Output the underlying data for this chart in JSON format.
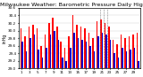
{
  "title": "Milwaukee Weather: Barometric Pressure Daily High/Low",
  "ylabel": "inHg",
  "background_color": "#ffffff",
  "bar_width": 0.35,
  "days": [
    1,
    2,
    3,
    4,
    5,
    6,
    7,
    8,
    9,
    10,
    11,
    12,
    13,
    14,
    15,
    16,
    17,
    18,
    19,
    20,
    21,
    22,
    23,
    24,
    25,
    26,
    27,
    28,
    29,
    30
  ],
  "highs": [
    30.05,
    29.85,
    30.1,
    30.15,
    30.05,
    29.6,
    29.9,
    30.2,
    30.35,
    30.1,
    29.7,
    29.55,
    29.85,
    30.4,
    30.15,
    30.1,
    30.05,
    29.95,
    29.8,
    30.25,
    30.3,
    30.2,
    30.1,
    29.75,
    29.65,
    29.9,
    29.8,
    29.85,
    29.9,
    29.95
  ],
  "lows": [
    29.7,
    29.45,
    29.8,
    29.9,
    29.5,
    29.3,
    29.55,
    29.9,
    30.0,
    29.75,
    29.3,
    29.2,
    29.55,
    29.95,
    29.8,
    29.75,
    29.7,
    29.6,
    29.45,
    29.85,
    29.95,
    29.9,
    29.75,
    29.4,
    29.3,
    29.55,
    29.45,
    29.5,
    29.55,
    29.2
  ],
  "high_color": "#ff0000",
  "low_color": "#0000cc",
  "ylim": [
    29.0,
    30.6
  ],
  "yticks": [
    29.0,
    29.2,
    29.4,
    29.6,
    29.8,
    30.0,
    30.2,
    30.4,
    30.6
  ],
  "ytick_labels": [
    "29.0",
    "29.2",
    "29.4",
    "29.6",
    "29.8",
    "30.0",
    "30.2",
    "30.4",
    "30.6"
  ],
  "grid_color": "#cccccc",
  "title_fontsize": 4.5,
  "tick_fontsize": 3.0,
  "ylabel_fontsize": 3.5
}
